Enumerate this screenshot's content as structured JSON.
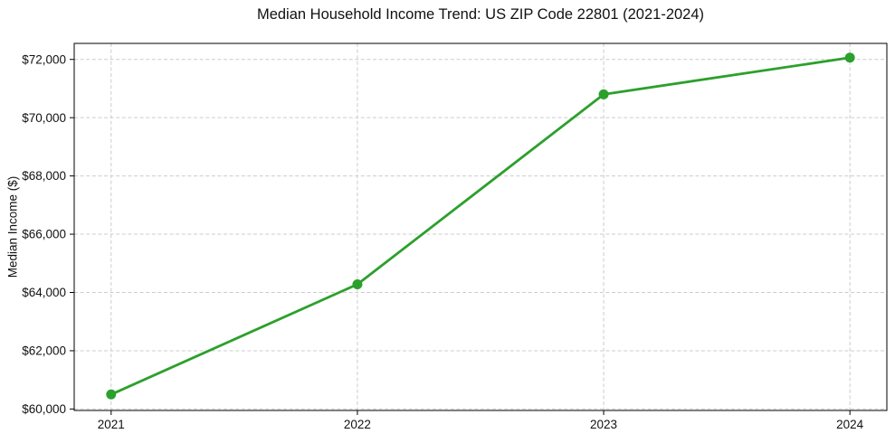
{
  "chart_data": {
    "type": "line",
    "title": "Median Household Income Trend: US ZIP Code 22801 (2021-2024)",
    "xlabel": "",
    "ylabel": "Median Income ($)",
    "x": [
      2021,
      2022,
      2023,
      2024
    ],
    "x_tick_labels": [
      "2021",
      "2022",
      "2023",
      "2024"
    ],
    "values": [
      60500,
      64280,
      70800,
      72060
    ],
    "y_ticks": [
      60000,
      62000,
      64000,
      66000,
      68000,
      70000,
      72000
    ],
    "y_tick_labels": [
      "$60,000",
      "$62,000",
      "$64,000",
      "$66,000",
      "$68,000",
      "$70,000",
      "$72,000"
    ],
    "ylim": [
      59950,
      72550
    ],
    "grid": "dashed",
    "legend": "none",
    "line_color": "#2ca02c",
    "marker": "circle",
    "marker_color": "#2ca02c",
    "marker_radius": 5.5
  }
}
